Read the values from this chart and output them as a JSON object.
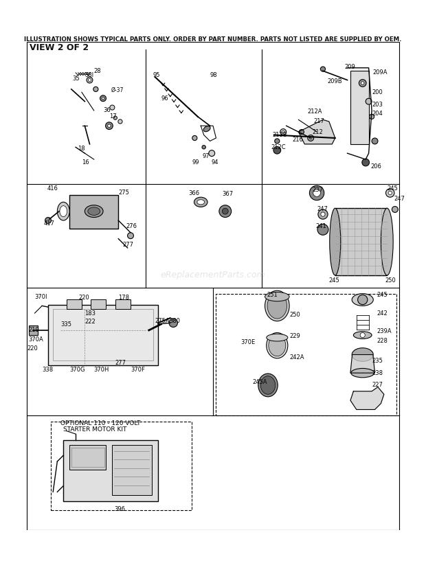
{
  "title_line1": "ILLUSTRATION SHOWS TYPICAL PARTS ONLY. ORDER BY PART NUMBER. PARTS NOT LISTED ARE SUPPLIED BY OEM.",
  "title_line2": "VIEW 2 OF 2",
  "bg_color": "#ffffff",
  "watermark": "eReplacementParts.com",
  "line_color": "#000000",
  "part_label_color": "#000000"
}
